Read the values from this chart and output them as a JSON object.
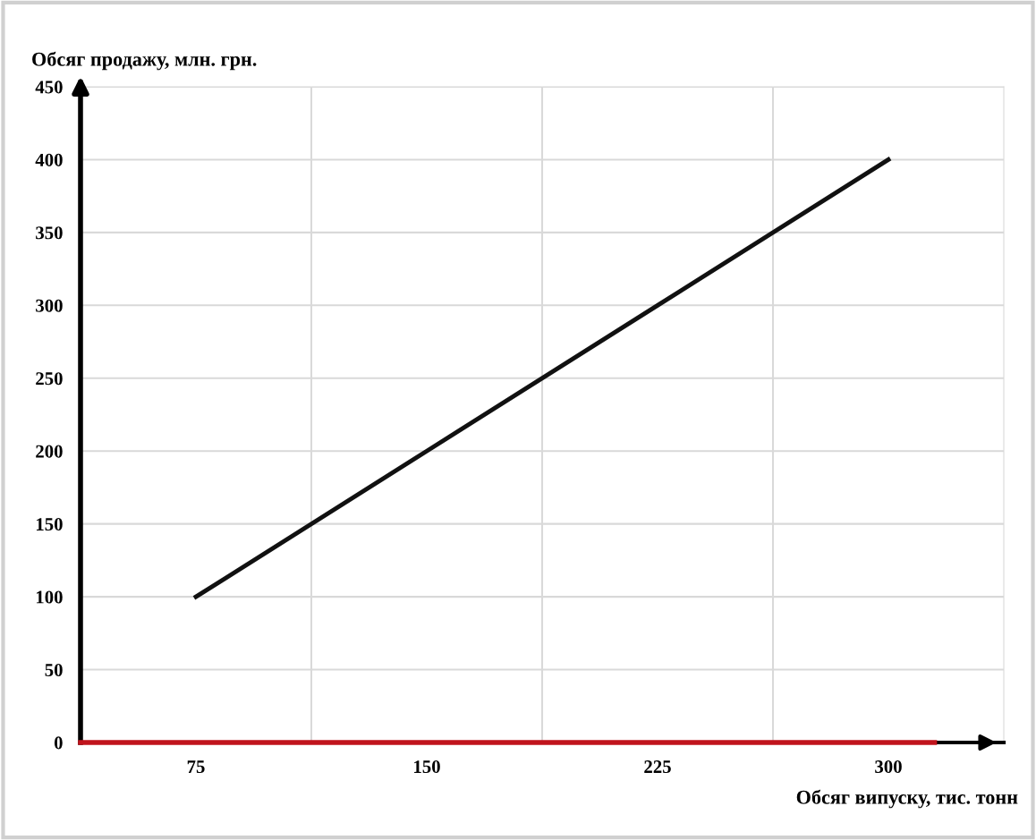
{
  "chart_data": {
    "type": "line",
    "ylabel": "Обсяг продажу, млн. грн.",
    "xlabel": "Обсяг випуску, тис. тонн",
    "categories": [
      "75",
      "150",
      "225",
      "300"
    ],
    "series": [
      {
        "color": "#111111",
        "values": [
          100,
          200,
          300,
          400
        ]
      }
    ],
    "ylim": [
      0,
      450
    ],
    "yticks": [
      0,
      50,
      100,
      150,
      200,
      250,
      300,
      350,
      400,
      450
    ],
    "grid": true,
    "marker": "none",
    "line_style": "solid",
    "ref_lines": [
      {
        "axis": "y",
        "value": 0,
        "color": "#c0141c"
      }
    ]
  }
}
